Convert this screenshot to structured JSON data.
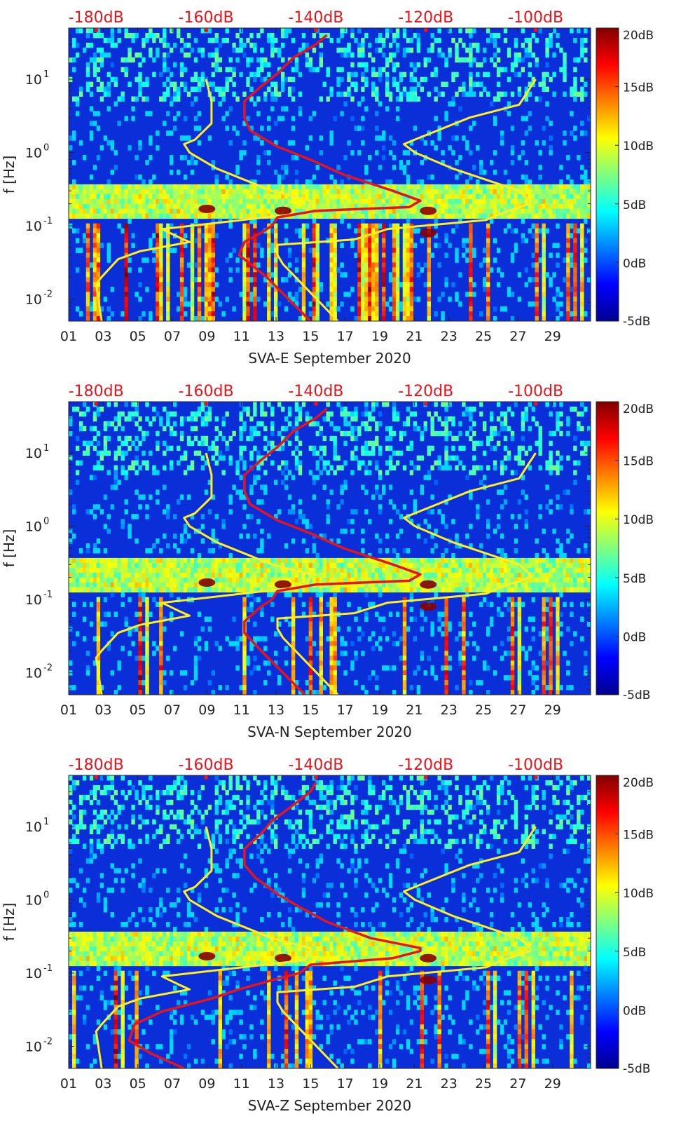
{
  "figure": {
    "ylabel": "f [Hz]",
    "colors": {
      "noise_model_curve": "#ffee22",
      "spectrum_curve": "#e8141b",
      "top_axis_text": "#e8141b",
      "background_low": "#00008f",
      "background_high": "#800000"
    }
  },
  "chart_data": [
    {
      "type": "heatmap",
      "xlabel": "SVA-E September 2020",
      "ylabel": "f [Hz]",
      "x_unit": "day of month",
      "xlim": [
        1,
        31.2
      ],
      "x_ticks": [
        "01",
        "03",
        "05",
        "07",
        "09",
        "11",
        "13",
        "15",
        "17",
        "19",
        "21",
        "23",
        "25",
        "27",
        "29"
      ],
      "y_scale": "log",
      "ylim": [
        0.005,
        50
      ],
      "y_ticks": [
        "10-2",
        "10-1",
        "100",
        "101"
      ],
      "top_axis_ticks": [
        "-180dB",
        "-160dB",
        "-140dB",
        "-120dB",
        "-100dB"
      ],
      "colorbar": {
        "colormap": "jet",
        "range": [
          -5,
          20
        ],
        "ticks": [
          "-5dB",
          "0dB",
          "5dB",
          "10dB",
          "15dB",
          "20dB"
        ]
      },
      "overlays": [
        {
          "color": "#ffee22",
          "f": [
            0.005,
            0.016,
            0.02,
            0.035,
            0.045,
            0.06,
            0.07,
            0.09,
            0.15,
            0.2,
            0.22,
            0.3,
            0.6,
            0.9,
            1.0,
            1.3,
            1.5,
            2.5,
            5,
            10
          ],
          "db": [
            -179,
            -180,
            -179,
            -176,
            -172,
            -163,
            -165,
            -168,
            -142,
            -141,
            -141,
            -148,
            -158,
            -162,
            -163,
            -164,
            -162,
            -159,
            -159,
            -160
          ]
        },
        {
          "color": "#ffee22",
          "f": [
            0.005,
            0.03,
            0.04,
            0.055,
            0.065,
            0.09,
            0.12,
            0.15,
            0.2,
            0.22,
            0.3,
            0.6,
            1.0,
            1.3,
            1.5,
            3,
            4.5,
            10
          ],
          "db": [
            -136,
            -146,
            -147,
            -147,
            -133,
            -127,
            -109,
            -106,
            -101,
            -101,
            -103,
            -115,
            -122,
            -124,
            -122,
            -112,
            -103,
            -100
          ]
        },
        {
          "color": "#e8141b",
          "f": [
            0.005,
            0.02,
            0.04,
            0.06,
            0.08,
            0.1,
            0.13,
            0.16,
            0.18,
            0.22,
            0.3,
            0.5,
            0.8,
            1.2,
            2,
            3,
            5,
            8,
            12,
            20,
            30,
            40
          ],
          "db": [
            -141,
            -149,
            -154,
            -153,
            -150,
            -148,
            -147,
            -140,
            -123,
            -121,
            -126,
            -135,
            -141,
            -147,
            -152,
            -153,
            -153,
            -150,
            -147,
            -144,
            -140,
            -138
          ]
        }
      ]
    },
    {
      "type": "heatmap",
      "xlabel": "SVA-N September 2020",
      "ylabel": "f [Hz]",
      "x_unit": "day of month",
      "xlim": [
        1,
        31.2
      ],
      "x_ticks": [
        "01",
        "03",
        "05",
        "07",
        "09",
        "11",
        "13",
        "15",
        "17",
        "19",
        "21",
        "23",
        "25",
        "27",
        "29"
      ],
      "y_scale": "log",
      "ylim": [
        0.005,
        50
      ],
      "y_ticks": [
        "10-2",
        "10-1",
        "100",
        "101"
      ],
      "top_axis_ticks": [
        "-180dB",
        "-160dB",
        "-140dB",
        "-120dB",
        "-100dB"
      ],
      "colorbar": {
        "colormap": "jet",
        "range": [
          -5,
          20
        ],
        "ticks": [
          "-5dB",
          "0dB",
          "5dB",
          "10dB",
          "15dB",
          "20dB"
        ]
      },
      "overlays": [
        {
          "color": "#ffee22",
          "f": [
            0.005,
            0.016,
            0.02,
            0.035,
            0.045,
            0.06,
            0.07,
            0.09,
            0.15,
            0.2,
            0.22,
            0.3,
            0.6,
            0.9,
            1.0,
            1.3,
            1.5,
            2.5,
            5,
            10
          ],
          "db": [
            -179,
            -180,
            -179,
            -176,
            -172,
            -163,
            -165,
            -168,
            -142,
            -141,
            -141,
            -148,
            -158,
            -162,
            -163,
            -164,
            -162,
            -159,
            -159,
            -160
          ]
        },
        {
          "color": "#ffee22",
          "f": [
            0.005,
            0.03,
            0.04,
            0.055,
            0.065,
            0.09,
            0.12,
            0.15,
            0.2,
            0.22,
            0.3,
            0.6,
            1.0,
            1.3,
            1.5,
            3,
            4.5,
            10
          ],
          "db": [
            -136,
            -146,
            -147,
            -147,
            -133,
            -127,
            -109,
            -106,
            -101,
            -101,
            -103,
            -115,
            -122,
            -124,
            -122,
            -112,
            -103,
            -100
          ]
        },
        {
          "color": "#e8141b",
          "f": [
            0.005,
            0.02,
            0.035,
            0.05,
            0.08,
            0.1,
            0.13,
            0.16,
            0.18,
            0.22,
            0.3,
            0.5,
            0.8,
            1.2,
            2,
            3,
            5,
            8,
            12,
            20,
            30,
            40
          ],
          "db": [
            -142,
            -150,
            -153,
            -153,
            -150,
            -148,
            -147,
            -140,
            -123,
            -121,
            -126,
            -135,
            -141,
            -147,
            -152,
            -153,
            -153,
            -150,
            -147,
            -144,
            -140,
            -138
          ]
        }
      ]
    },
    {
      "type": "heatmap",
      "xlabel": "SVA-Z September 2020",
      "ylabel": "f [Hz]",
      "x_unit": "day of month",
      "xlim": [
        1,
        31.2
      ],
      "x_ticks": [
        "01",
        "03",
        "05",
        "07",
        "09",
        "11",
        "13",
        "15",
        "17",
        "19",
        "21",
        "23",
        "25",
        "27",
        "29"
      ],
      "y_scale": "log",
      "ylim": [
        0.005,
        50
      ],
      "y_ticks": [
        "10-2",
        "10-1",
        "100",
        "101"
      ],
      "top_axis_ticks": [
        "-180dB",
        "-160dB",
        "-140dB",
        "-120dB",
        "-100dB"
      ],
      "colorbar": {
        "colormap": "jet",
        "range": [
          -5,
          20
        ],
        "ticks": [
          "-5dB",
          "0dB",
          "5dB",
          "10dB",
          "15dB",
          "20dB"
        ]
      },
      "overlays": [
        {
          "color": "#ffee22",
          "f": [
            0.005,
            0.016,
            0.02,
            0.035,
            0.045,
            0.06,
            0.07,
            0.09,
            0.15,
            0.2,
            0.22,
            0.3,
            0.6,
            0.9,
            1.0,
            1.3,
            1.5,
            2.5,
            5,
            10
          ],
          "db": [
            -179,
            -180,
            -179,
            -176,
            -172,
            -163,
            -165,
            -168,
            -142,
            -141,
            -141,
            -148,
            -158,
            -162,
            -163,
            -164,
            -162,
            -159,
            -159,
            -160
          ]
        },
        {
          "color": "#ffee22",
          "f": [
            0.005,
            0.03,
            0.04,
            0.055,
            0.065,
            0.09,
            0.12,
            0.15,
            0.2,
            0.22,
            0.3,
            0.6,
            1.0,
            1.3,
            1.5,
            3,
            4.5,
            10
          ],
          "db": [
            -136,
            -146,
            -147,
            -147,
            -133,
            -127,
            -109,
            -106,
            -101,
            -101,
            -103,
            -115,
            -122,
            -124,
            -122,
            -112,
            -103,
            -100
          ]
        },
        {
          "color": "#e8141b",
          "f": [
            0.005,
            0.008,
            0.012,
            0.02,
            0.03,
            0.045,
            0.06,
            0.08,
            0.1,
            0.13,
            0.16,
            0.2,
            0.22,
            0.3,
            0.5,
            0.8,
            1.2,
            2,
            3,
            5,
            8,
            12,
            20,
            30,
            40
          ],
          "db": [
            -164,
            -170,
            -174,
            -173,
            -168,
            -159,
            -154,
            -148,
            -143,
            -141,
            -126,
            -121,
            -121,
            -130,
            -138,
            -143,
            -147,
            -151,
            -153,
            -153,
            -150,
            -148,
            -144,
            -141,
            -140
          ]
        }
      ]
    }
  ]
}
